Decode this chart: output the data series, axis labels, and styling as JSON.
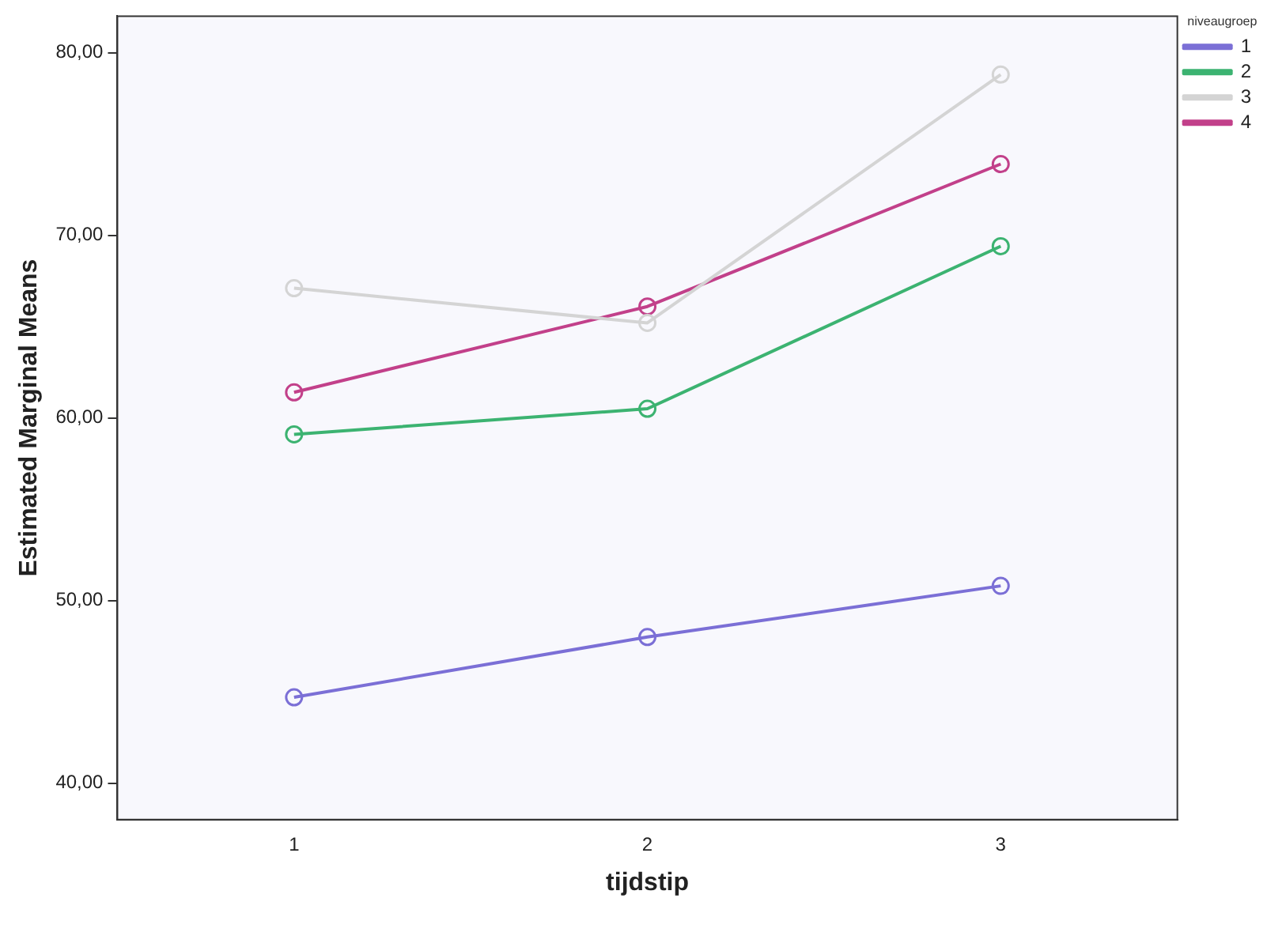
{
  "chart_data": {
    "type": "line",
    "xlabel": "tijdstip",
    "ylabel": "Estimated Marginal Means",
    "legend_title": "niveaugroep",
    "categories": [
      "1",
      "2",
      "3"
    ],
    "series": [
      {
        "name": "1",
        "color": "#7b6fd6",
        "values": [
          44.7,
          48.0,
          50.8
        ]
      },
      {
        "name": "2",
        "color": "#3cb371",
        "values": [
          59.1,
          60.5,
          69.4
        ]
      },
      {
        "name": "3",
        "color": "#d4d4d4",
        "values": [
          67.1,
          65.2,
          78.8
        ]
      },
      {
        "name": "4",
        "color": "#c2408a",
        "values": [
          61.4,
          66.1,
          73.9
        ]
      }
    ],
    "ylim": [
      38,
      82
    ],
    "yticks": [
      {
        "value": 40,
        "label": "40,00"
      },
      {
        "value": 50,
        "label": "50,00"
      },
      {
        "value": 60,
        "label": "60,00"
      },
      {
        "value": 70,
        "label": "70,00"
      },
      {
        "value": 80,
        "label": "80,00"
      }
    ],
    "grid": false,
    "legend": "top right",
    "marker": "circle",
    "line_style": "solid"
  }
}
